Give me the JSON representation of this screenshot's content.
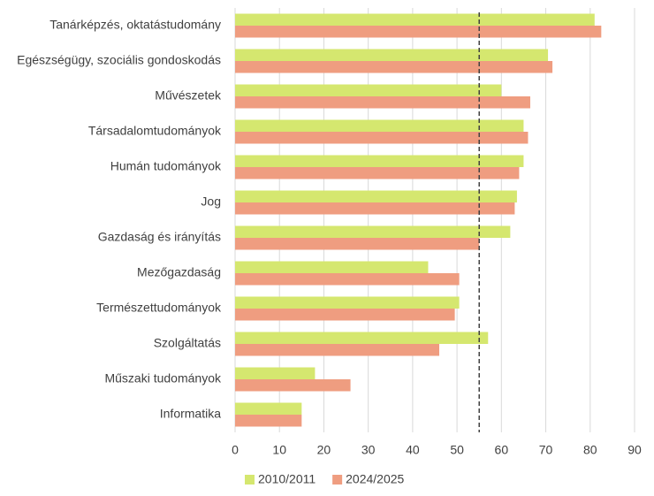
{
  "chart_data": {
    "type": "bar",
    "orientation": "horizontal",
    "categories": [
      "Tanárképzés, oktatástudomány",
      "Egészségügy, szociális gondoskodás",
      "Művészetek",
      "Társadalomtudományok",
      "Humán tudományok",
      "Jog",
      "Gazdaság és irányítás",
      "Mezőgazdaság",
      "Természettudományok",
      "Szolgáltatás",
      "Műszaki tudományok",
      "Informatika"
    ],
    "series": [
      {
        "name": "2010/2011",
        "color": "#d5e76f",
        "values": [
          81,
          70.5,
          60,
          65,
          65,
          63.5,
          62,
          43.5,
          50.5,
          57,
          18,
          15
        ]
      },
      {
        "name": "2024/2025",
        "color": "#ef9d80",
        "values": [
          82.5,
          71.5,
          66.5,
          66,
          64,
          63,
          55,
          50.5,
          49.5,
          46,
          26,
          15
        ]
      }
    ],
    "reference_line": 55,
    "xlim": [
      0,
      90
    ],
    "xticks": [
      0,
      10,
      20,
      30,
      40,
      50,
      60,
      70,
      80,
      90
    ],
    "grid": true,
    "legend": "bottom"
  }
}
